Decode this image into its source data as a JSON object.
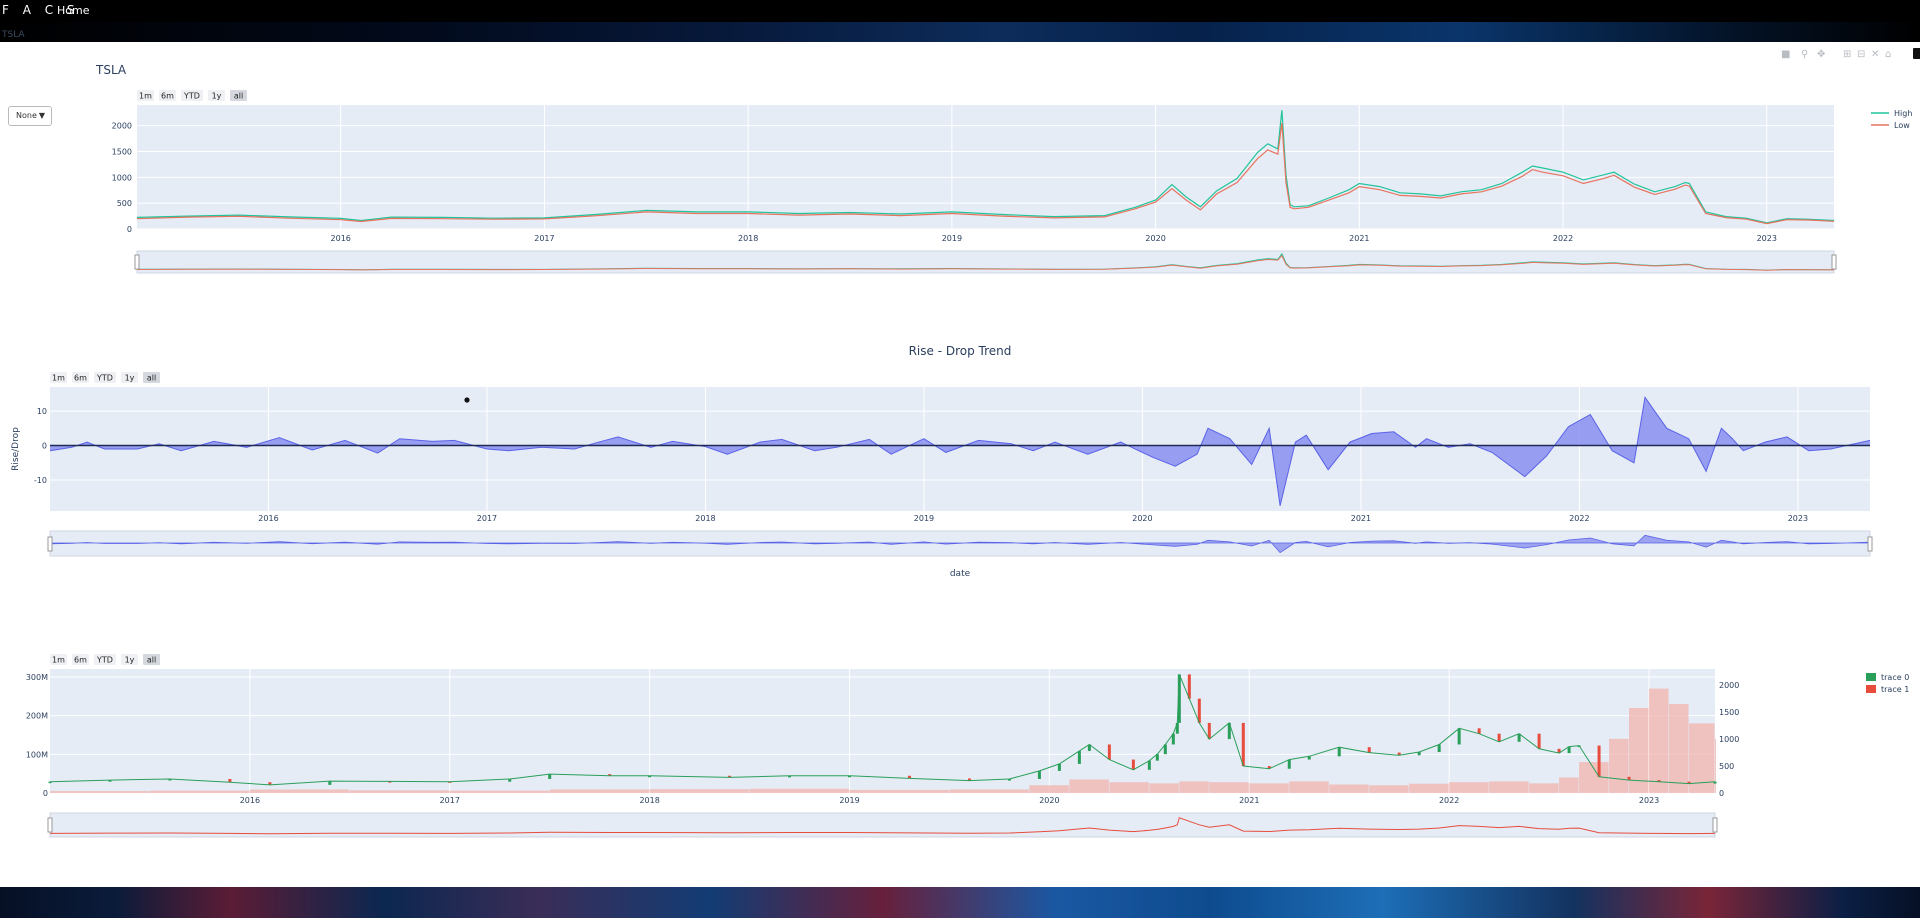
{
  "nav": {
    "brand": "F A C S",
    "home_label": "Home",
    "ticker_crumb": "TSLA"
  },
  "dropdown": {
    "selected": "None",
    "arrow": "▼"
  },
  "modebar_icons": [
    "camera-icon",
    "zoom-icon",
    "pan-icon",
    "zoom-in-icon",
    "zoom-out-icon",
    "autoscale-icon",
    "reset-axes-icon",
    "plotly-logo-icon"
  ],
  "range_buttons": [
    "1m",
    "6m",
    "YTD",
    "1y",
    "all"
  ],
  "colors": {
    "high": "#21c49a",
    "low": "#e8735f",
    "fill": "#8a91f0",
    "line": "#5a62e8",
    "plot_bg": "#e5ecf6",
    "candle_up": "#2a9f5a",
    "candle_down": "#e74c3c",
    "volume": "#f1b4ae"
  },
  "chart_data": [
    {
      "type": "line",
      "title": "TSLA",
      "xlabel": "",
      "ylabel": "",
      "x_range": [
        2015.0,
        2023.33
      ],
      "ylim": [
        0,
        2400
      ],
      "yticks": [
        0,
        500,
        1000,
        1500,
        2000
      ],
      "xticks": [
        "2016",
        "2017",
        "2018",
        "2019",
        "2020",
        "2021",
        "2022",
        "2023"
      ],
      "legend": [
        "High",
        "Low"
      ],
      "x": [
        2015.0,
        2015.25,
        2015.5,
        2015.75,
        2016.0,
        2016.1,
        2016.25,
        2016.5,
        2016.75,
        2017.0,
        2017.25,
        2017.5,
        2017.75,
        2018.0,
        2018.25,
        2018.5,
        2018.75,
        2019.0,
        2019.25,
        2019.5,
        2019.75,
        2019.9,
        2020.0,
        2020.08,
        2020.15,
        2020.22,
        2020.3,
        2020.4,
        2020.5,
        2020.55,
        2020.6,
        2020.62,
        2020.64,
        2020.66,
        2020.68,
        2020.75,
        2020.85,
        2020.95,
        2021.0,
        2021.1,
        2021.2,
        2021.3,
        2021.4,
        2021.5,
        2021.6,
        2021.7,
        2021.8,
        2021.85,
        2021.9,
        2022.0,
        2022.1,
        2022.2,
        2022.25,
        2022.35,
        2022.45,
        2022.55,
        2022.6,
        2022.62,
        2022.7,
        2022.8,
        2022.9,
        2023.0,
        2023.1,
        2023.2,
        2023.33
      ],
      "series": [
        {
          "name": "High",
          "values": [
            225,
            250,
            270,
            235,
            205,
            165,
            230,
            225,
            210,
            215,
            280,
            360,
            330,
            330,
            300,
            320,
            290,
            330,
            280,
            240,
            260,
            420,
            560,
            860,
            620,
            430,
            740,
            980,
            1480,
            1650,
            1550,
            2300,
            1050,
            470,
            430,
            450,
            600,
            760,
            880,
            820,
            700,
            680,
            640,
            720,
            760,
            880,
            1100,
            1220,
            1180,
            1100,
            950,
            1050,
            1100,
            870,
            720,
            820,
            900,
            880,
            330,
            240,
            210,
            120,
            200,
            190,
            165
          ]
        },
        {
          "name": "Low",
          "values": [
            200,
            230,
            245,
            210,
            180,
            145,
            205,
            200,
            190,
            195,
            255,
            330,
            300,
            300,
            270,
            290,
            260,
            300,
            250,
            215,
            235,
            390,
            520,
            780,
            560,
            370,
            680,
            900,
            1360,
            1530,
            1450,
            2050,
            900,
            420,
            390,
            420,
            560,
            700,
            820,
            760,
            650,
            630,
            600,
            680,
            720,
            830,
            1020,
            1150,
            1100,
            1030,
            880,
            980,
            1040,
            810,
            670,
            770,
            850,
            830,
            300,
            220,
            190,
            105,
            180,
            175,
            150
          ]
        }
      ]
    },
    {
      "type": "area",
      "title": "Rise - Drop Trend",
      "xlabel": "date",
      "ylabel": "Rise/Drop",
      "x_range": [
        2015.0,
        2023.33
      ],
      "ylim": [
        -19,
        17
      ],
      "yticks": [
        10,
        0,
        -10
      ],
      "xticks": [
        "2016",
        "2017",
        "2018",
        "2019",
        "2020",
        "2021",
        "2022",
        "2023"
      ],
      "x": [
        2015.0,
        2015.1,
        2015.17,
        2015.25,
        2015.4,
        2015.5,
        2015.6,
        2015.75,
        2015.9,
        2016.05,
        2016.2,
        2016.35,
        2016.5,
        2016.6,
        2016.75,
        2016.85,
        2017.0,
        2017.1,
        2017.25,
        2017.4,
        2017.5,
        2017.6,
        2017.75,
        2017.85,
        2018.0,
        2018.1,
        2018.25,
        2018.35,
        2018.5,
        2018.6,
        2018.75,
        2018.85,
        2019.0,
        2019.1,
        2019.25,
        2019.4,
        2019.5,
        2019.6,
        2019.75,
        2019.9,
        2020.05,
        2020.15,
        2020.25,
        2020.3,
        2020.4,
        2020.5,
        2020.58,
        2020.63,
        2020.7,
        2020.75,
        2020.85,
        2020.95,
        2021.05,
        2021.15,
        2021.25,
        2021.3,
        2021.4,
        2021.5,
        2021.6,
        2021.75,
        2021.85,
        2021.95,
        2022.05,
        2022.15,
        2022.25,
        2022.3,
        2022.4,
        2022.5,
        2022.58,
        2022.65,
        2022.7,
        2022.75,
        2022.85,
        2022.95,
        2023.05,
        2023.15,
        2023.33
      ],
      "values": [
        -1.5,
        -0.5,
        1.0,
        -1.0,
        -1.0,
        0.5,
        -1.5,
        1.2,
        -0.5,
        2.3,
        -1.3,
        1.5,
        -2.2,
        2.0,
        1.2,
        1.5,
        -1.0,
        -1.5,
        -0.5,
        -1.0,
        0.8,
        2.5,
        -0.5,
        1.2,
        -0.3,
        -2.5,
        1.0,
        1.8,
        -1.5,
        -0.5,
        1.8,
        -2.5,
        2.0,
        -2.0,
        1.5,
        0.5,
        -1.5,
        1.0,
        -2.5,
        1.0,
        -3.5,
        -6.0,
        -2.5,
        5.0,
        2.0,
        -5.5,
        5.0,
        -17.5,
        1.0,
        3.0,
        -7.0,
        1.0,
        3.5,
        4.0,
        -0.5,
        2.0,
        -0.5,
        0.5,
        -2.0,
        -9.0,
        -3.0,
        5.5,
        9.0,
        -1.5,
        -5.0,
        14.0,
        5.0,
        2.0,
        -7.5,
        5.0,
        2.0,
        -1.5,
        1.0,
        2.5,
        -1.5,
        -1.0,
        1.5
      ]
    },
    {
      "type": "bar",
      "title": "",
      "xlabel": "",
      "ylabel": "",
      "x_range": [
        2015.0,
        2023.33
      ],
      "ylim_left": [
        0,
        300000000
      ],
      "yticks_left": [
        "0",
        "100M",
        "200M",
        "300M"
      ],
      "ylim_right": [
        0,
        2300
      ],
      "yticks_right": [
        0,
        500,
        1000,
        1500,
        2000
      ],
      "xticks": [
        "2016",
        "2017",
        "2018",
        "2019",
        "2020",
        "2021",
        "2022",
        "2023"
      ],
      "legend": [
        "trace 0",
        "trace 1"
      ],
      "series": [
        {
          "name": "trace 0",
          "kind": "candlestick",
          "x": [
            2015.0,
            2015.3,
            2015.6,
            2015.9,
            2016.1,
            2016.4,
            2016.7,
            2017.0,
            2017.3,
            2017.5,
            2017.8,
            2018.0,
            2018.4,
            2018.7,
            2019.0,
            2019.3,
            2019.6,
            2019.8,
            2019.95,
            2020.05,
            2020.15,
            2020.2,
            2020.3,
            2020.42,
            2020.5,
            2020.54,
            2020.58,
            2020.62,
            2020.64,
            2020.65,
            2020.7,
            2020.75,
            2020.8,
            2020.9,
            2020.97,
            2021.1,
            2021.2,
            2021.3,
            2021.45,
            2021.6,
            2021.75,
            2021.85,
            2021.95,
            2022.05,
            2022.15,
            2022.25,
            2022.35,
            2022.45,
            2022.55,
            2022.6,
            2022.65,
            2022.75,
            2022.9,
            2023.05,
            2023.2,
            2023.33
          ],
          "close": [
            210,
            240,
            260,
            200,
            150,
            220,
            215,
            210,
            260,
            350,
            320,
            320,
            290,
            320,
            320,
            270,
            230,
            260,
            410,
            540,
            780,
            900,
            620,
            430,
            600,
            720,
            900,
            1100,
            1300,
            2200,
            1750,
            1300,
            1000,
            1300,
            500,
            450,
            620,
            680,
            850,
            750,
            700,
            760,
            900,
            1200,
            1100,
            950,
            1100,
            820,
            740,
            860,
            880,
            300,
            240,
            210,
            175,
            210
          ]
        },
        {
          "name": "trace 1",
          "kind": "volume",
          "x": [
            2015.0,
            2015.5,
            2016.0,
            2016.5,
            2017.0,
            2017.5,
            2018.0,
            2018.5,
            2019.0,
            2019.5,
            2019.9,
            2020.1,
            2020.3,
            2020.5,
            2020.65,
            2020.8,
            2021.0,
            2021.2,
            2021.4,
            2021.6,
            2021.8,
            2022.0,
            2022.2,
            2022.4,
            2022.55,
            2022.65,
            2022.8,
            2022.9,
            2023.0,
            2023.1,
            2023.2,
            2023.33
          ],
          "values": [
            5000000,
            6000000,
            9000000,
            7000000,
            6000000,
            9000000,
            10000000,
            11000000,
            8000000,
            9000000,
            20000000,
            35000000,
            28000000,
            25000000,
            30000000,
            28000000,
            25000000,
            30000000,
            22000000,
            20000000,
            24000000,
            28000000,
            30000000,
            25000000,
            40000000,
            80000000,
            140000000,
            220000000,
            270000000,
            230000000,
            180000000,
            140000000
          ]
        }
      ]
    }
  ]
}
